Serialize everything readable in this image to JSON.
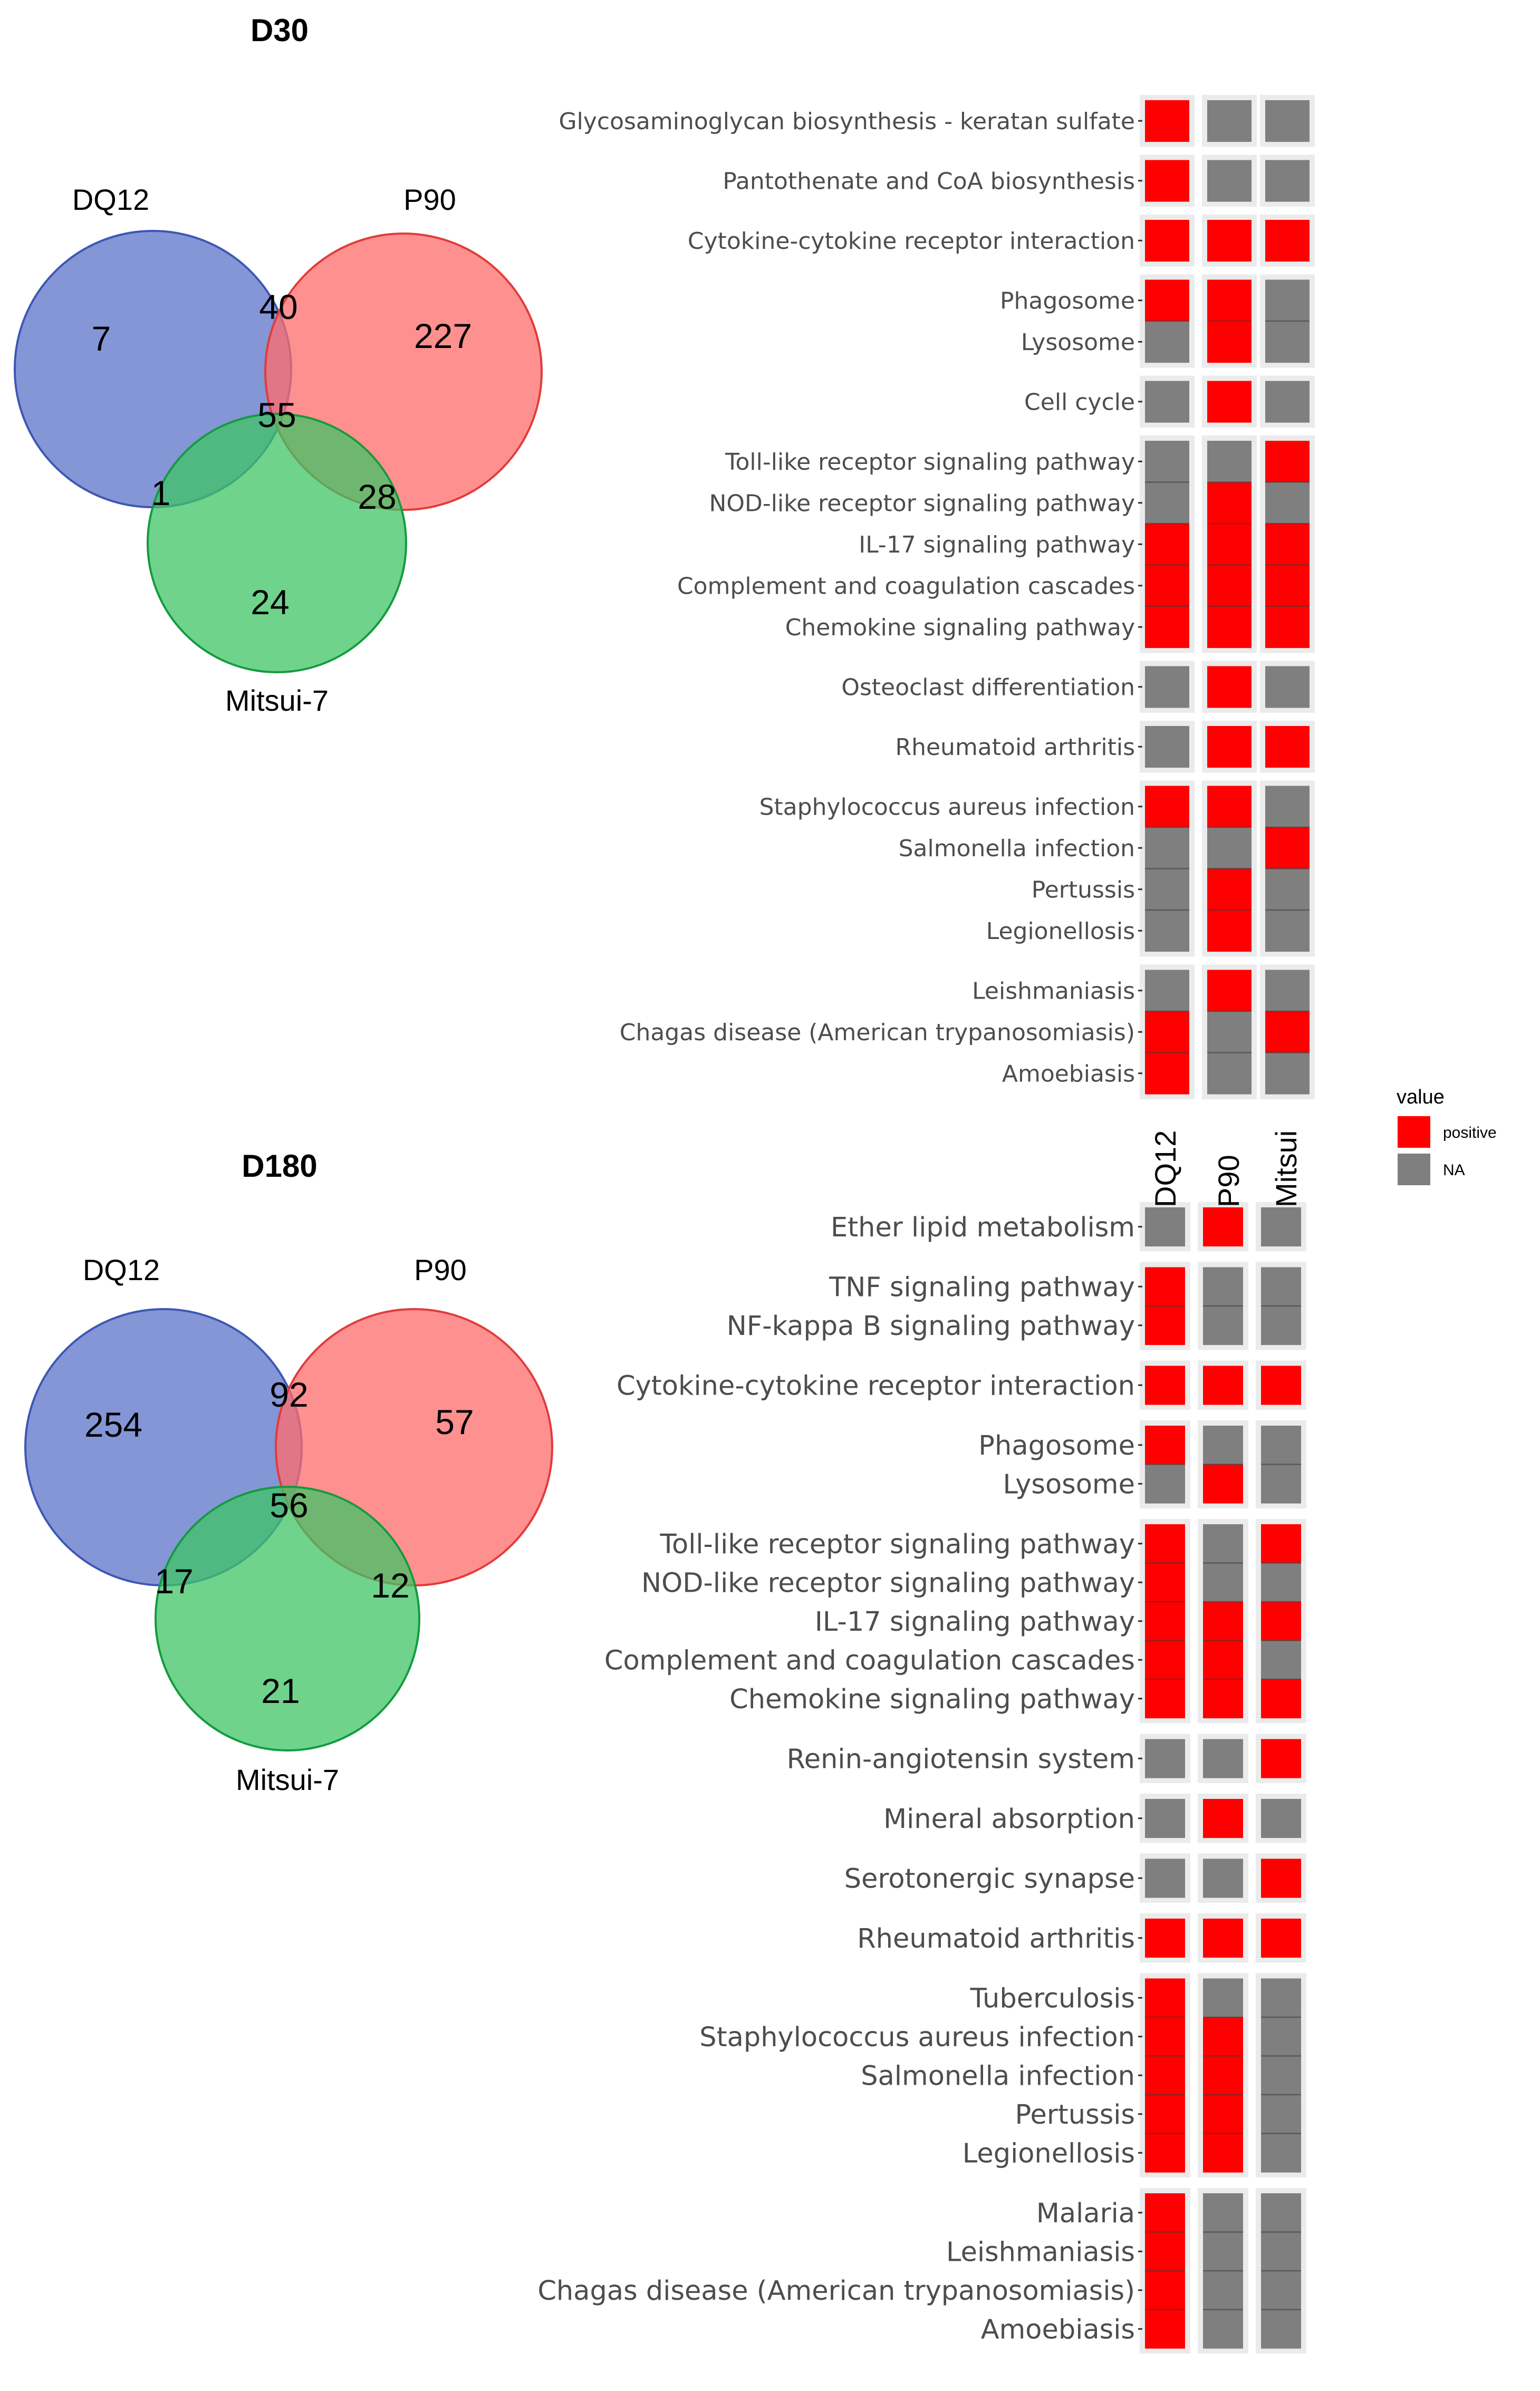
{
  "colors": {
    "positive": "#ff0000",
    "na": "#7f7f7f",
    "strip": "#ebebeb",
    "venn_a": "#6f84cf",
    "venn_b": "#ff6b6b",
    "venn_c": "#3fc466"
  },
  "chart_data": [
    {
      "type": "venn",
      "title": "D30",
      "sets": [
        "DQ12",
        "P90",
        "Mitsui-7"
      ],
      "regions": {
        "DQ12_only": "7",
        "P90_only": "227",
        "Mitsui7_only": "24",
        "DQ12_P90": "40",
        "DQ12_Mitsui7": "1",
        "P90_Mitsui7": "28",
        "all_three": "55"
      }
    },
    {
      "type": "venn",
      "title": "D180",
      "sets": [
        "DQ12",
        "P90",
        "Mitsui-7"
      ],
      "regions": {
        "DQ12_only": "254",
        "P90_only": "57",
        "Mitsui7_only": "21",
        "DQ12_P90": "92",
        "DQ12_Mitsui7": "17",
        "P90_Mitsui7": "12",
        "all_three": "56"
      }
    },
    {
      "type": "heatmap",
      "panel": "D30",
      "columns": [
        "DQ12",
        "P90",
        "Mitsui"
      ],
      "legend": {
        "title": "value",
        "items": [
          "positive",
          "NA"
        ]
      },
      "groups": [
        {
          "rows": [
            {
              "label": "Glycosaminoglycan biosynthesis - keratan sulfate",
              "values": [
                "positive",
                "NA",
                "NA"
              ]
            }
          ]
        },
        {
          "rows": [
            {
              "label": "Pantothenate and CoA biosynthesis",
              "values": [
                "positive",
                "NA",
                "NA"
              ]
            }
          ]
        },
        {
          "rows": [
            {
              "label": "Cytokine-cytokine receptor interaction",
              "values": [
                "positive",
                "positive",
                "positive"
              ]
            }
          ]
        },
        {
          "rows": [
            {
              "label": "Phagosome",
              "values": [
                "positive",
                "positive",
                "NA"
              ]
            },
            {
              "label": "Lysosome",
              "values": [
                "NA",
                "positive",
                "NA"
              ]
            }
          ]
        },
        {
          "rows": [
            {
              "label": "Cell cycle",
              "values": [
                "NA",
                "positive",
                "NA"
              ]
            }
          ]
        },
        {
          "rows": [
            {
              "label": "Toll-like receptor signaling pathway",
              "values": [
                "NA",
                "NA",
                "positive"
              ]
            },
            {
              "label": "NOD-like receptor signaling pathway",
              "values": [
                "NA",
                "positive",
                "NA"
              ]
            },
            {
              "label": "IL-17 signaling pathway",
              "values": [
                "positive",
                "positive",
                "positive"
              ]
            },
            {
              "label": "Complement and coagulation cascades",
              "values": [
                "positive",
                "positive",
                "positive"
              ]
            },
            {
              "label": "Chemokine signaling pathway",
              "values": [
                "positive",
                "positive",
                "positive"
              ]
            }
          ]
        },
        {
          "rows": [
            {
              "label": "Osteoclast differentiation",
              "values": [
                "NA",
                "positive",
                "NA"
              ]
            }
          ]
        },
        {
          "rows": [
            {
              "label": "Rheumatoid arthritis",
              "values": [
                "NA",
                "positive",
                "positive"
              ]
            }
          ]
        },
        {
          "rows": [
            {
              "label": "Staphylococcus aureus infection",
              "values": [
                "positive",
                "positive",
                "NA"
              ]
            },
            {
              "label": "Salmonella infection",
              "values": [
                "NA",
                "NA",
                "positive"
              ]
            },
            {
              "label": "Pertussis",
              "values": [
                "NA",
                "positive",
                "NA"
              ]
            },
            {
              "label": "Legionellosis",
              "values": [
                "NA",
                "positive",
                "NA"
              ]
            }
          ]
        },
        {
          "rows": [
            {
              "label": "Leishmaniasis",
              "values": [
                "NA",
                "positive",
                "NA"
              ]
            },
            {
              "label": "Chagas disease (American trypanosomiasis)",
              "values": [
                "positive",
                "NA",
                "positive"
              ]
            },
            {
              "label": "Amoebiasis",
              "values": [
                "positive",
                "NA",
                "NA"
              ]
            }
          ]
        }
      ]
    },
    {
      "type": "heatmap",
      "panel": "D180",
      "columns": [
        "DQ12",
        "P90",
        "Mitsui"
      ],
      "groups": [
        {
          "rows": [
            {
              "label": "Ether lipid metabolism",
              "values": [
                "NA",
                "positive",
                "NA"
              ]
            }
          ]
        },
        {
          "rows": [
            {
              "label": "TNF signaling pathway",
              "values": [
                "positive",
                "NA",
                "NA"
              ]
            },
            {
              "label": "NF-kappa B signaling pathway",
              "values": [
                "positive",
                "NA",
                "NA"
              ]
            }
          ]
        },
        {
          "rows": [
            {
              "label": "Cytokine-cytokine receptor interaction",
              "values": [
                "positive",
                "positive",
                "positive"
              ]
            }
          ]
        },
        {
          "rows": [
            {
              "label": "Phagosome",
              "values": [
                "positive",
                "NA",
                "NA"
              ]
            },
            {
              "label": "Lysosome",
              "values": [
                "NA",
                "positive",
                "NA"
              ]
            }
          ]
        },
        {
          "rows": [
            {
              "label": "Toll-like receptor signaling pathway",
              "values": [
                "positive",
                "NA",
                "positive"
              ]
            },
            {
              "label": "NOD-like receptor signaling pathway",
              "values": [
                "positive",
                "NA",
                "NA"
              ]
            },
            {
              "label": "IL-17 signaling pathway",
              "values": [
                "positive",
                "positive",
                "positive"
              ]
            },
            {
              "label": "Complement and coagulation cascades",
              "values": [
                "positive",
                "positive",
                "NA"
              ]
            },
            {
              "label": "Chemokine signaling pathway",
              "values": [
                "positive",
                "positive",
                "positive"
              ]
            }
          ]
        },
        {
          "rows": [
            {
              "label": "Renin-angiotensin system",
              "values": [
                "NA",
                "NA",
                "positive"
              ]
            }
          ]
        },
        {
          "rows": [
            {
              "label": "Mineral absorption",
              "values": [
                "NA",
                "positive",
                "NA"
              ]
            }
          ]
        },
        {
          "rows": [
            {
              "label": "Serotonergic synapse",
              "values": [
                "NA",
                "NA",
                "positive"
              ]
            }
          ]
        },
        {
          "rows": [
            {
              "label": "Rheumatoid arthritis",
              "values": [
                "positive",
                "positive",
                "positive"
              ]
            }
          ]
        },
        {
          "rows": [
            {
              "label": "Tuberculosis",
              "values": [
                "positive",
                "NA",
                "NA"
              ]
            },
            {
              "label": "Staphylococcus aureus infection",
              "values": [
                "positive",
                "positive",
                "NA"
              ]
            },
            {
              "label": "Salmonella infection",
              "values": [
                "positive",
                "positive",
                "NA"
              ]
            },
            {
              "label": "Pertussis",
              "values": [
                "positive",
                "positive",
                "NA"
              ]
            },
            {
              "label": "Legionellosis",
              "values": [
                "positive",
                "positive",
                "NA"
              ]
            }
          ]
        },
        {
          "rows": [
            {
              "label": "Malaria",
              "values": [
                "positive",
                "NA",
                "NA"
              ]
            },
            {
              "label": "Leishmaniasis",
              "values": [
                "positive",
                "NA",
                "NA"
              ]
            },
            {
              "label": "Chagas disease (American trypanosomiasis)",
              "values": [
                "positive",
                "NA",
                "NA"
              ]
            },
            {
              "label": "Amoebiasis",
              "values": [
                "positive",
                "NA",
                "NA"
              ]
            }
          ]
        }
      ]
    }
  ]
}
